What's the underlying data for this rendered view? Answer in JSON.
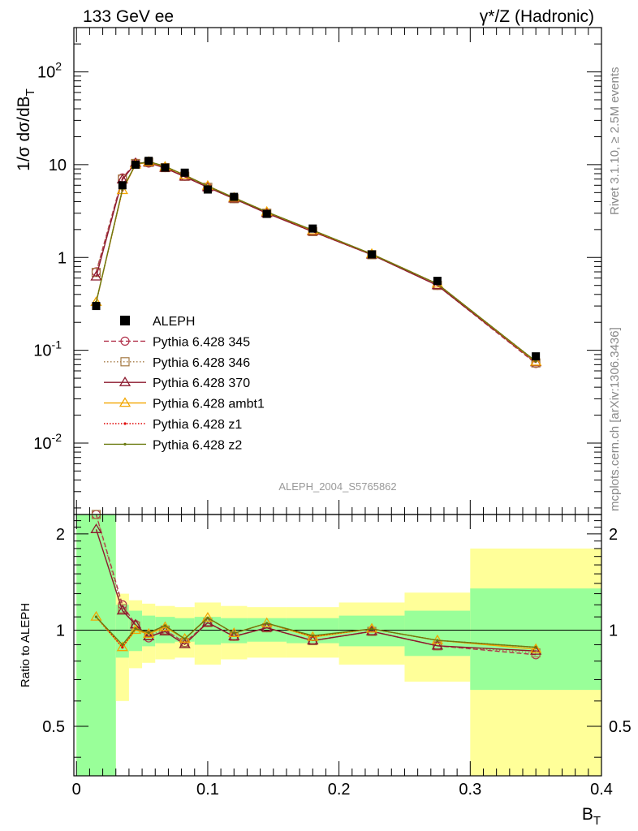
{
  "header": {
    "left_title": "133 GeV ee",
    "right_title": "γ*/Z (Hadronic)"
  },
  "side_text": {
    "rivet": "Rivet 3.1.10, ≥ 2.5M events",
    "mcplots": "mcplots.cern.ch [arXiv:1306.3436]"
  },
  "chart_data": [
    {
      "type": "line",
      "name": "main",
      "ylabel": "1/σ  dσ/dB_T",
      "yscale": "log",
      "ylim": [
        0.0017,
        300
      ],
      "xlim": [
        -0.002,
        0.4
      ],
      "yticks": [
        {
          "value": 0.01,
          "label_base": "10",
          "label_exp": "-2"
        },
        {
          "value": 0.1,
          "label_base": "10",
          "label_exp": "-1"
        },
        {
          "value": 1,
          "label_base": "1",
          "label_exp": ""
        },
        {
          "value": 10,
          "label_base": "10",
          "label_exp": ""
        },
        {
          "value": 100,
          "label_base": "10",
          "label_exp": "2"
        }
      ],
      "watermark": "ALEPH_2004_S5765862",
      "legend_position": "lower-left",
      "data": {
        "name": "ALEPH",
        "x": [
          0.015,
          0.035,
          0.045,
          0.055,
          0.0675,
          0.0825,
          0.1,
          0.12,
          0.145,
          0.18,
          0.225,
          0.275,
          0.35
        ],
        "y": [
          0.3,
          6.0,
          10.0,
          11.0,
          9.3,
          8.2,
          5.4,
          4.5,
          2.95,
          2.05,
          1.08,
          0.56,
          0.086
        ]
      },
      "series": [
        {
          "name": "Pythia 6.428 345",
          "color": "#b2334c",
          "dash": "6,3",
          "marker": "circle-open",
          "y": [
            0.7,
            7.2,
            10.4,
            10.4,
            9.3,
            7.5,
            5.7,
            4.3,
            3.0,
            1.9,
            1.07,
            0.5,
            0.072
          ]
        },
        {
          "name": "Pythia 6.428 346",
          "color": "#a57a44",
          "dash": "1.5,2.5",
          "marker": "square-open",
          "y": [
            0.69,
            7.0,
            10.3,
            10.6,
            9.3,
            7.5,
            5.7,
            4.3,
            3.0,
            1.9,
            1.07,
            0.5,
            0.073
          ]
        },
        {
          "name": "Pythia 6.428 370",
          "color": "#8c1a2e",
          "dash": "",
          "marker": "triangle-open",
          "y": [
            0.62,
            6.9,
            10.4,
            10.5,
            9.2,
            7.4,
            5.7,
            4.3,
            3.0,
            1.9,
            1.07,
            0.5,
            0.074
          ]
        },
        {
          "name": "Pythia 6.428 ambt1",
          "color": "#f2a600",
          "dash": "",
          "marker": "triangle-open",
          "y": [
            0.33,
            5.3,
            10.0,
            10.7,
            9.5,
            7.7,
            5.9,
            4.4,
            3.1,
            1.95,
            1.09,
            0.52,
            0.075
          ]
        },
        {
          "name": "Pythia 6.428 z1",
          "color": "#e00000",
          "dash": "1.5,2",
          "marker": "dot",
          "y": [
            0.33,
            5.3,
            10.1,
            10.8,
            9.6,
            7.7,
            5.9,
            4.4,
            3.1,
            1.96,
            1.09,
            0.52,
            0.076
          ]
        },
        {
          "name": "Pythia 6.428 z2",
          "color": "#6b7a10",
          "dash": "",
          "marker": "dot",
          "y": [
            0.33,
            5.4,
            10.1,
            10.8,
            9.6,
            7.7,
            5.9,
            4.4,
            3.1,
            1.97,
            1.09,
            0.52,
            0.076
          ]
        }
      ]
    },
    {
      "type": "line",
      "name": "ratio",
      "ylabel": "Ratio to ALEPH",
      "xlabel": "B_T",
      "yscale": "log",
      "ylim": [
        0.35,
        2.3
      ],
      "xlim": [
        -0.002,
        0.4
      ],
      "yticks": [
        {
          "value": 0.5,
          "label": "0.5"
        },
        {
          "value": 1,
          "label": "1"
        },
        {
          "value": 2,
          "label": "2"
        }
      ],
      "xticks": [
        {
          "value": 0,
          "label": "0"
        },
        {
          "value": 0.1,
          "label": "0.1"
        },
        {
          "value": 0.2,
          "label": "0.2"
        },
        {
          "value": 0.3,
          "label": "0.3"
        },
        {
          "value": 0.4,
          "label": "0.4"
        }
      ],
      "bins": [
        {
          "lo": 0.0,
          "hi": 0.03,
          "yellow": [
            0.35,
            2.3
          ],
          "green": [
            0.35,
            2.3
          ]
        },
        {
          "lo": 0.03,
          "hi": 0.04,
          "yellow": [
            0.6,
            1.3
          ],
          "green": [
            0.82,
            1.2
          ]
        },
        {
          "lo": 0.04,
          "hi": 0.05,
          "yellow": [
            0.76,
            1.24
          ],
          "green": [
            0.86,
            1.15
          ]
        },
        {
          "lo": 0.05,
          "hi": 0.06,
          "yellow": [
            0.79,
            1.21
          ],
          "green": [
            0.89,
            1.11
          ]
        },
        {
          "lo": 0.06,
          "hi": 0.075,
          "yellow": [
            0.81,
            1.19
          ],
          "green": [
            0.91,
            1.1
          ]
        },
        {
          "lo": 0.075,
          "hi": 0.09,
          "yellow": [
            0.82,
            1.18
          ],
          "green": [
            0.92,
            1.09
          ]
        },
        {
          "lo": 0.09,
          "hi": 0.11,
          "yellow": [
            0.78,
            1.22
          ],
          "green": [
            0.9,
            1.1
          ]
        },
        {
          "lo": 0.11,
          "hi": 0.13,
          "yellow": [
            0.81,
            1.19
          ],
          "green": [
            0.91,
            1.09
          ]
        },
        {
          "lo": 0.13,
          "hi": 0.16,
          "yellow": [
            0.82,
            1.18
          ],
          "green": [
            0.92,
            1.09
          ]
        },
        {
          "lo": 0.16,
          "hi": 0.2,
          "yellow": [
            0.82,
            1.18
          ],
          "green": [
            0.91,
            1.09
          ]
        },
        {
          "lo": 0.2,
          "hi": 0.25,
          "yellow": [
            0.78,
            1.22
          ],
          "green": [
            0.89,
            1.11
          ]
        },
        {
          "lo": 0.25,
          "hi": 0.3,
          "yellow": [
            0.69,
            1.31
          ],
          "green": [
            0.83,
            1.15
          ]
        },
        {
          "lo": 0.3,
          "hi": 0.4,
          "yellow": [
            0.35,
            1.8
          ],
          "green": [
            0.65,
            1.35
          ]
        }
      ]
    }
  ]
}
